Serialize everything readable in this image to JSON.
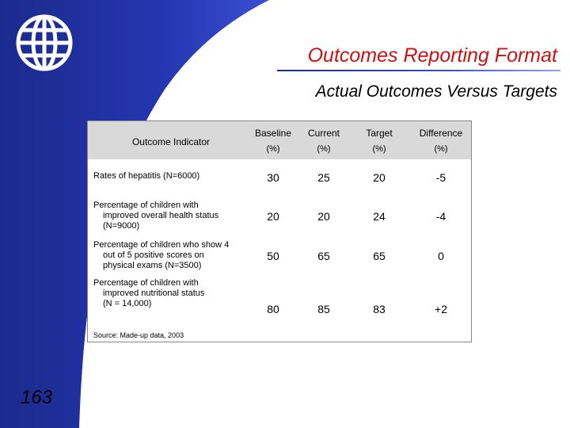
{
  "slide": {
    "title": "Outcomes Reporting Format",
    "subtitle": "Actual Outcomes Versus Targets",
    "page_number": "163",
    "source_note": "Source: Made-up data, 2003"
  },
  "table": {
    "indicator_header": "Outcome Indicator",
    "columns": [
      {
        "label": "Baseline",
        "unit": "(%)"
      },
      {
        "label": "Current",
        "unit": "(%)"
      },
      {
        "label": "Target",
        "unit": "(%)"
      },
      {
        "label": "Difference",
        "unit": "(%)"
      }
    ],
    "rows": [
      {
        "lines": [
          "Rates of hepatitis (N=6000)"
        ],
        "values": [
          "30",
          "25",
          "20",
          "-5"
        ]
      },
      {
        "lines": [
          "Percentage of children with",
          "improved overall health status",
          "(N=9000)"
        ],
        "values": [
          "20",
          "20",
          "24",
          "-4"
        ]
      },
      {
        "lines": [
          "Percentage of children who show 4",
          "out of 5 positive scores on",
          "physical exams (N=3500)"
        ],
        "values": [
          "50",
          "65",
          "65",
          "0"
        ]
      },
      {
        "lines": [
          "Percentage of children with",
          "improved nutritional status",
          "(N = 14,000)"
        ],
        "values": [
          "80",
          "85",
          "83",
          "+2"
        ]
      }
    ]
  },
  "colors": {
    "title_red": "#cc1111",
    "sidebar_blue": "#1b2a8c",
    "header_gray": "#d9d9d9"
  },
  "icons": {
    "logo": "globe-icon"
  }
}
